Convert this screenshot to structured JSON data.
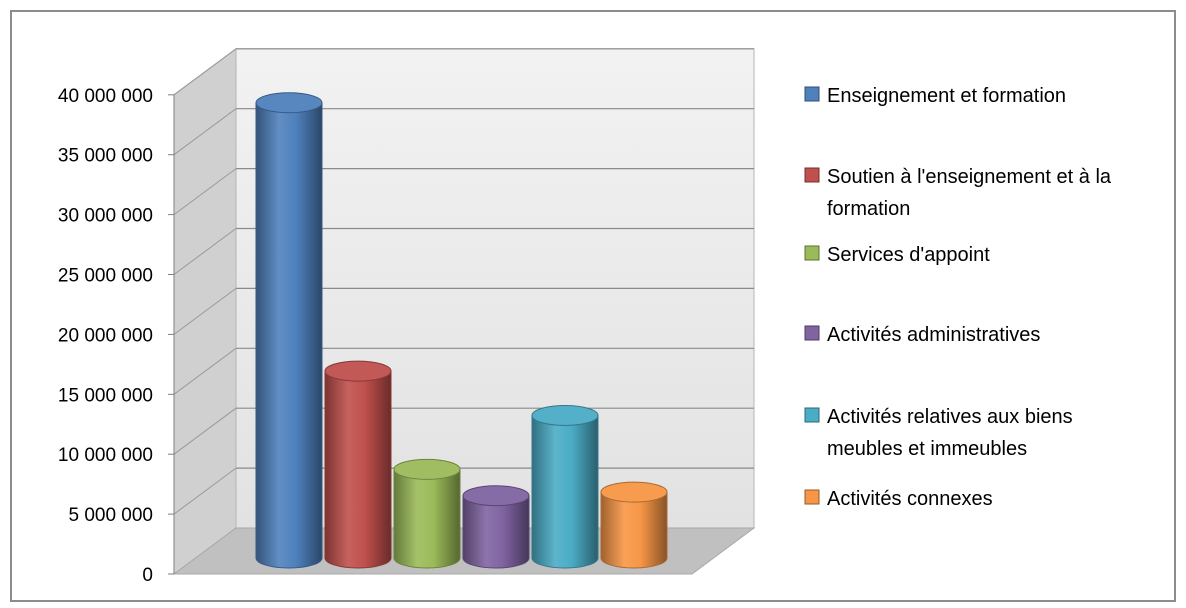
{
  "chart_data": {
    "type": "bar",
    "bar_shape": "3d-cylinder",
    "ylim": [
      0,
      40000000
    ],
    "y_ticks": [
      {
        "value": 0,
        "label": "0"
      },
      {
        "value": 5000000,
        "label": "5 000 000"
      },
      {
        "value": 10000000,
        "label": "10 000 000"
      },
      {
        "value": 15000000,
        "label": "15 000 000"
      },
      {
        "value": 20000000,
        "label": "20 000 000"
      },
      {
        "value": 25000000,
        "label": "25 000 000"
      },
      {
        "value": 30000000,
        "label": "30 000 000"
      },
      {
        "value": 35000000,
        "label": "35 000 000"
      },
      {
        "value": 40000000,
        "label": "40 000 000"
      }
    ],
    "grid": true,
    "legend_position": "right",
    "series": [
      {
        "name": "Enseignement et formation",
        "value": 38000000,
        "color": "#4f81bd",
        "legend_lines": [
          "Enseignement et formation"
        ]
      },
      {
        "name": "Soutien à l'enseignement et à la formation",
        "value": 15600000,
        "color": "#c0504d",
        "legend_lines": [
          "Soutien à l'enseignement et à la",
          "formation"
        ]
      },
      {
        "name": "Services d'appoint",
        "value": 7400000,
        "color": "#9bbb59",
        "legend_lines": [
          "Services d'appoint"
        ]
      },
      {
        "name": "Activités administratives",
        "value": 5200000,
        "color": "#8064a2",
        "legend_lines": [
          "Activités administratives"
        ]
      },
      {
        "name": "Activités relatives aux biens meubles et immeubles",
        "value": 11900000,
        "color": "#4bacc6",
        "legend_lines": [
          "Activités relatives aux biens",
          "meubles et immeubles"
        ]
      },
      {
        "name": "Activités connexes",
        "value": 5500000,
        "color": "#f79646",
        "legend_lines": [
          "Activités connexes"
        ]
      }
    ]
  }
}
